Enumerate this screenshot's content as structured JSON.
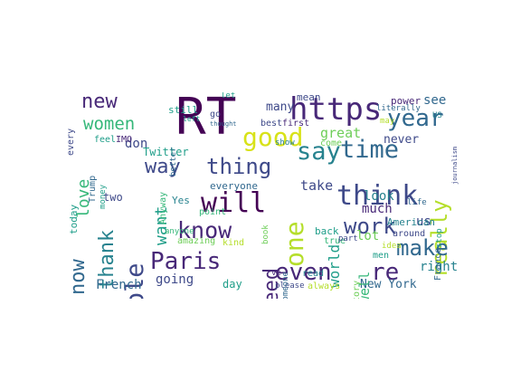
{
  "palette": {
    "c1": "#440154",
    "c2": "#482878",
    "c3": "#3e4989",
    "c4": "#31688e",
    "c5": "#26828e",
    "c6": "#1f9e89",
    "c7": "#35b779",
    "c8": "#6ece58",
    "c9": "#b5de2b",
    "c10": "#d8e219"
  },
  "words": [
    {
      "id": "rt",
      "text": "RT",
      "c": "c1"
    },
    {
      "id": "https",
      "text": "https",
      "c": "c2"
    },
    {
      "id": "new",
      "text": "new",
      "c": "c2"
    },
    {
      "id": "women",
      "text": "women",
      "c": "c7"
    },
    {
      "id": "good",
      "text": "good",
      "c": "c10"
    },
    {
      "id": "year",
      "text": "year",
      "c": "c4"
    },
    {
      "id": "one",
      "text": "one",
      "c": "c9"
    },
    {
      "id": "people",
      "text": "people",
      "c": "c3"
    },
    {
      "id": "thank",
      "text": "thank",
      "c": "c5"
    },
    {
      "id": "love",
      "text": "love",
      "c": "c7"
    },
    {
      "id": "now",
      "text": "now",
      "c": "c4"
    },
    {
      "id": "will",
      "text": "will",
      "c": "c1"
    },
    {
      "id": "way",
      "text": "way",
      "c": "c3"
    },
    {
      "id": "thing",
      "text": "thing",
      "c": "c3"
    },
    {
      "id": "say",
      "text": "say",
      "c": "c5"
    },
    {
      "id": "time",
      "text": "time",
      "c": "c4"
    },
    {
      "id": "think",
      "text": "think",
      "c": "c3"
    },
    {
      "id": "really",
      "text": "really",
      "c": "c9"
    },
    {
      "id": "know",
      "text": "know",
      "c": "c2"
    },
    {
      "id": "work",
      "text": "work",
      "c": "c3"
    },
    {
      "id": "make",
      "text": "make",
      "c": "c4"
    },
    {
      "id": "paris",
      "text": "Paris",
      "c": "c2"
    },
    {
      "id": "need",
      "text": "need",
      "c": "c2"
    },
    {
      "id": "even",
      "text": "even",
      "c": "c2"
    },
    {
      "id": "re",
      "text": "re",
      "c": "c2"
    },
    {
      "id": "want",
      "text": "want",
      "c": "c6"
    },
    {
      "id": "going",
      "text": "going",
      "c": "c3"
    },
    {
      "id": "french",
      "text": "French",
      "c": "c4"
    },
    {
      "id": "newyork",
      "text": "New York",
      "c": "c4"
    },
    {
      "id": "right",
      "text": "right",
      "c": "c5"
    },
    {
      "id": "us",
      "text": "us",
      "c": "c3"
    },
    {
      "id": "world",
      "text": "world",
      "c": "c6"
    },
    {
      "id": "take",
      "text": "take",
      "c": "c3"
    },
    {
      "id": "great",
      "text": "great",
      "c": "c8"
    },
    {
      "id": "look",
      "text": "look",
      "c": "c5"
    },
    {
      "id": "much",
      "text": "much",
      "c": "c2"
    },
    {
      "id": "lot",
      "text": "lot",
      "c": "c8"
    },
    {
      "id": "never",
      "text": "never",
      "c": "c3"
    },
    {
      "id": "see",
      "text": "see",
      "c": "c4"
    },
    {
      "id": "twitter",
      "text": "Twitter",
      "c": "c6"
    },
    {
      "id": "don",
      "text": "don",
      "c": "c3"
    },
    {
      "id": "many",
      "text": "many",
      "c": "c3"
    },
    {
      "id": "day",
      "text": "day",
      "c": "c6"
    },
    {
      "id": "well",
      "text": "well",
      "c": "c7"
    },
    {
      "id": "still",
      "text": "still",
      "c": "c6"
    },
    {
      "id": "mean",
      "text": "mean",
      "c": "c3"
    },
    {
      "id": "power",
      "text": "power",
      "c": "c2"
    },
    {
      "id": "feel",
      "text": "feel",
      "c": "c6"
    },
    {
      "id": "two",
      "text": "two",
      "c": "c3"
    },
    {
      "id": "yes",
      "text": "Yes",
      "c": "c5"
    },
    {
      "id": "everyone",
      "text": "everyone",
      "c": "c4"
    },
    {
      "id": "point",
      "text": "point",
      "c": "c7"
    },
    {
      "id": "amazing",
      "text": "amazing",
      "c": "c8"
    },
    {
      "id": "kind",
      "text": "kind",
      "c": "c9"
    },
    {
      "id": "american",
      "text": "American",
      "c": "c5"
    },
    {
      "id": "france",
      "text": "France",
      "c": "c4"
    },
    {
      "id": "around",
      "text": "around",
      "c": "c3"
    },
    {
      "id": "always",
      "text": "always",
      "c": "c9"
    },
    {
      "id": "please",
      "text": "please",
      "c": "c3"
    },
    {
      "id": "back",
      "text": "back",
      "c": "c6"
    },
    {
      "id": "true",
      "text": "true",
      "c": "c7"
    },
    {
      "id": "life",
      "text": "life",
      "c": "c4"
    },
    {
      "id": "part",
      "text": "part",
      "c": "c3"
    },
    {
      "id": "idea",
      "text": "idea",
      "c": "c9"
    },
    {
      "id": "men",
      "text": "men",
      "c": "c6"
    },
    {
      "id": "story",
      "text": "story",
      "c": "c8"
    },
    {
      "id": "first",
      "text": "first",
      "c": "c2"
    },
    {
      "id": "best",
      "text": "best",
      "c": "c3"
    },
    {
      "id": "come",
      "text": "come",
      "c": "c8"
    },
    {
      "id": "show",
      "text": "show",
      "c": "c5"
    },
    {
      "id": "book",
      "text": "book",
      "c": "c8"
    },
    {
      "id": "someone",
      "text": "someone",
      "c": "c4"
    },
    {
      "id": "read",
      "text": "read",
      "c": "c5"
    },
    {
      "id": "ve",
      "text": "ve",
      "c": "c2"
    },
    {
      "id": "anyone",
      "text": "anyone",
      "c": "c7"
    },
    {
      "id": "today",
      "text": "today",
      "c": "c6"
    },
    {
      "id": "trump",
      "text": "Trump",
      "c": "c4"
    },
    {
      "id": "money",
      "text": "money",
      "c": "c6"
    },
    {
      "id": "imo",
      "text": "IMO",
      "c": "c2"
    },
    {
      "id": "every",
      "text": "every",
      "c": "c3"
    },
    {
      "id": "better",
      "text": "better",
      "c": "c4"
    },
    {
      "id": "anyway",
      "text": "Anyway",
      "c": "c7"
    },
    {
      "id": "go",
      "text": "go",
      "c": "c3"
    },
    {
      "id": "stop",
      "text": "stop",
      "c": "c6"
    },
    {
      "id": "literally",
      "text": "literally",
      "c": "c4"
    },
    {
      "id": "may",
      "text": "may",
      "c": "c9"
    },
    {
      "id": "let",
      "text": "let",
      "c": "c6"
    },
    {
      "id": "journalism",
      "text": "journalism",
      "c": "c3"
    },
    {
      "id": "thought",
      "text": "thought",
      "c": "c4"
    },
    {
      "id": "us2",
      "text": "US",
      "c": "c5"
    },
    {
      "id": "left",
      "text": "left",
      "c": "c6"
    }
  ]
}
